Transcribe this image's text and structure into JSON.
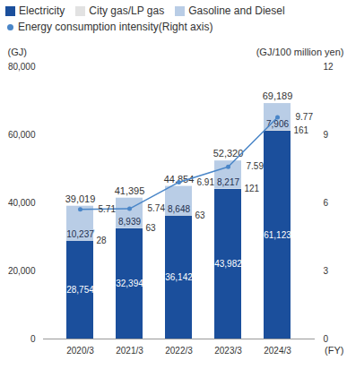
{
  "chart_data": {
    "type": "bar",
    "stacked": true,
    "data_labels": true,
    "categories": [
      "2020/3",
      "2021/3",
      "2022/3",
      "2023/3",
      "2024/3"
    ],
    "series": [
      {
        "name": "Electricity",
        "color": "#1b4f9c",
        "values": [
          28754,
          32394,
          36142,
          43982,
          61123
        ],
        "value_labels": [
          "28,754",
          "32,394",
          "36,142",
          "43,982",
          "61,123"
        ]
      },
      {
        "name": "City gas/LP gas",
        "color": "#e2e2e2",
        "values": [
          28,
          63,
          63,
          121,
          161
        ]
      },
      {
        "name": "Gasoline and Diesel",
        "color": "#b9cde6",
        "values": [
          10237,
          8939,
          8648,
          8217,
          7906
        ],
        "value_labels": [
          "10,237",
          "8,939",
          "8,648",
          "8,217",
          "7,906"
        ]
      },
      {
        "name": "Energy consumption intensity(Right axis)",
        "type": "line",
        "axis": "y2",
        "marker": "circle",
        "color": "#4a86c8",
        "values": [
          5.71,
          5.74,
          6.91,
          7.59,
          9.77
        ]
      }
    ],
    "totals": [
      39019,
      41395,
      44854,
      52320,
      69189
    ],
    "total_labels": [
      "39,019",
      "41,395",
      "44,854",
      "52,320",
      "69,189"
    ],
    "y_label": "(GJ)",
    "y2_label": "(GJ/100 million yen)",
    "x_label": "(FY)",
    "ylim": [
      0,
      80000
    ],
    "yticks": [
      0,
      {
        "value": 20000,
        "label": "20,000"
      },
      {
        "value": 40000,
        "label": "40,000"
      },
      {
        "value": 60000,
        "label": "60,000"
      },
      {
        "value": 80000,
        "label": "80,000"
      }
    ],
    "y2lim": [
      0,
      12
    ],
    "y2ticks": [
      0,
      3,
      6,
      9,
      12
    ],
    "grid": false,
    "legend": "top"
  }
}
